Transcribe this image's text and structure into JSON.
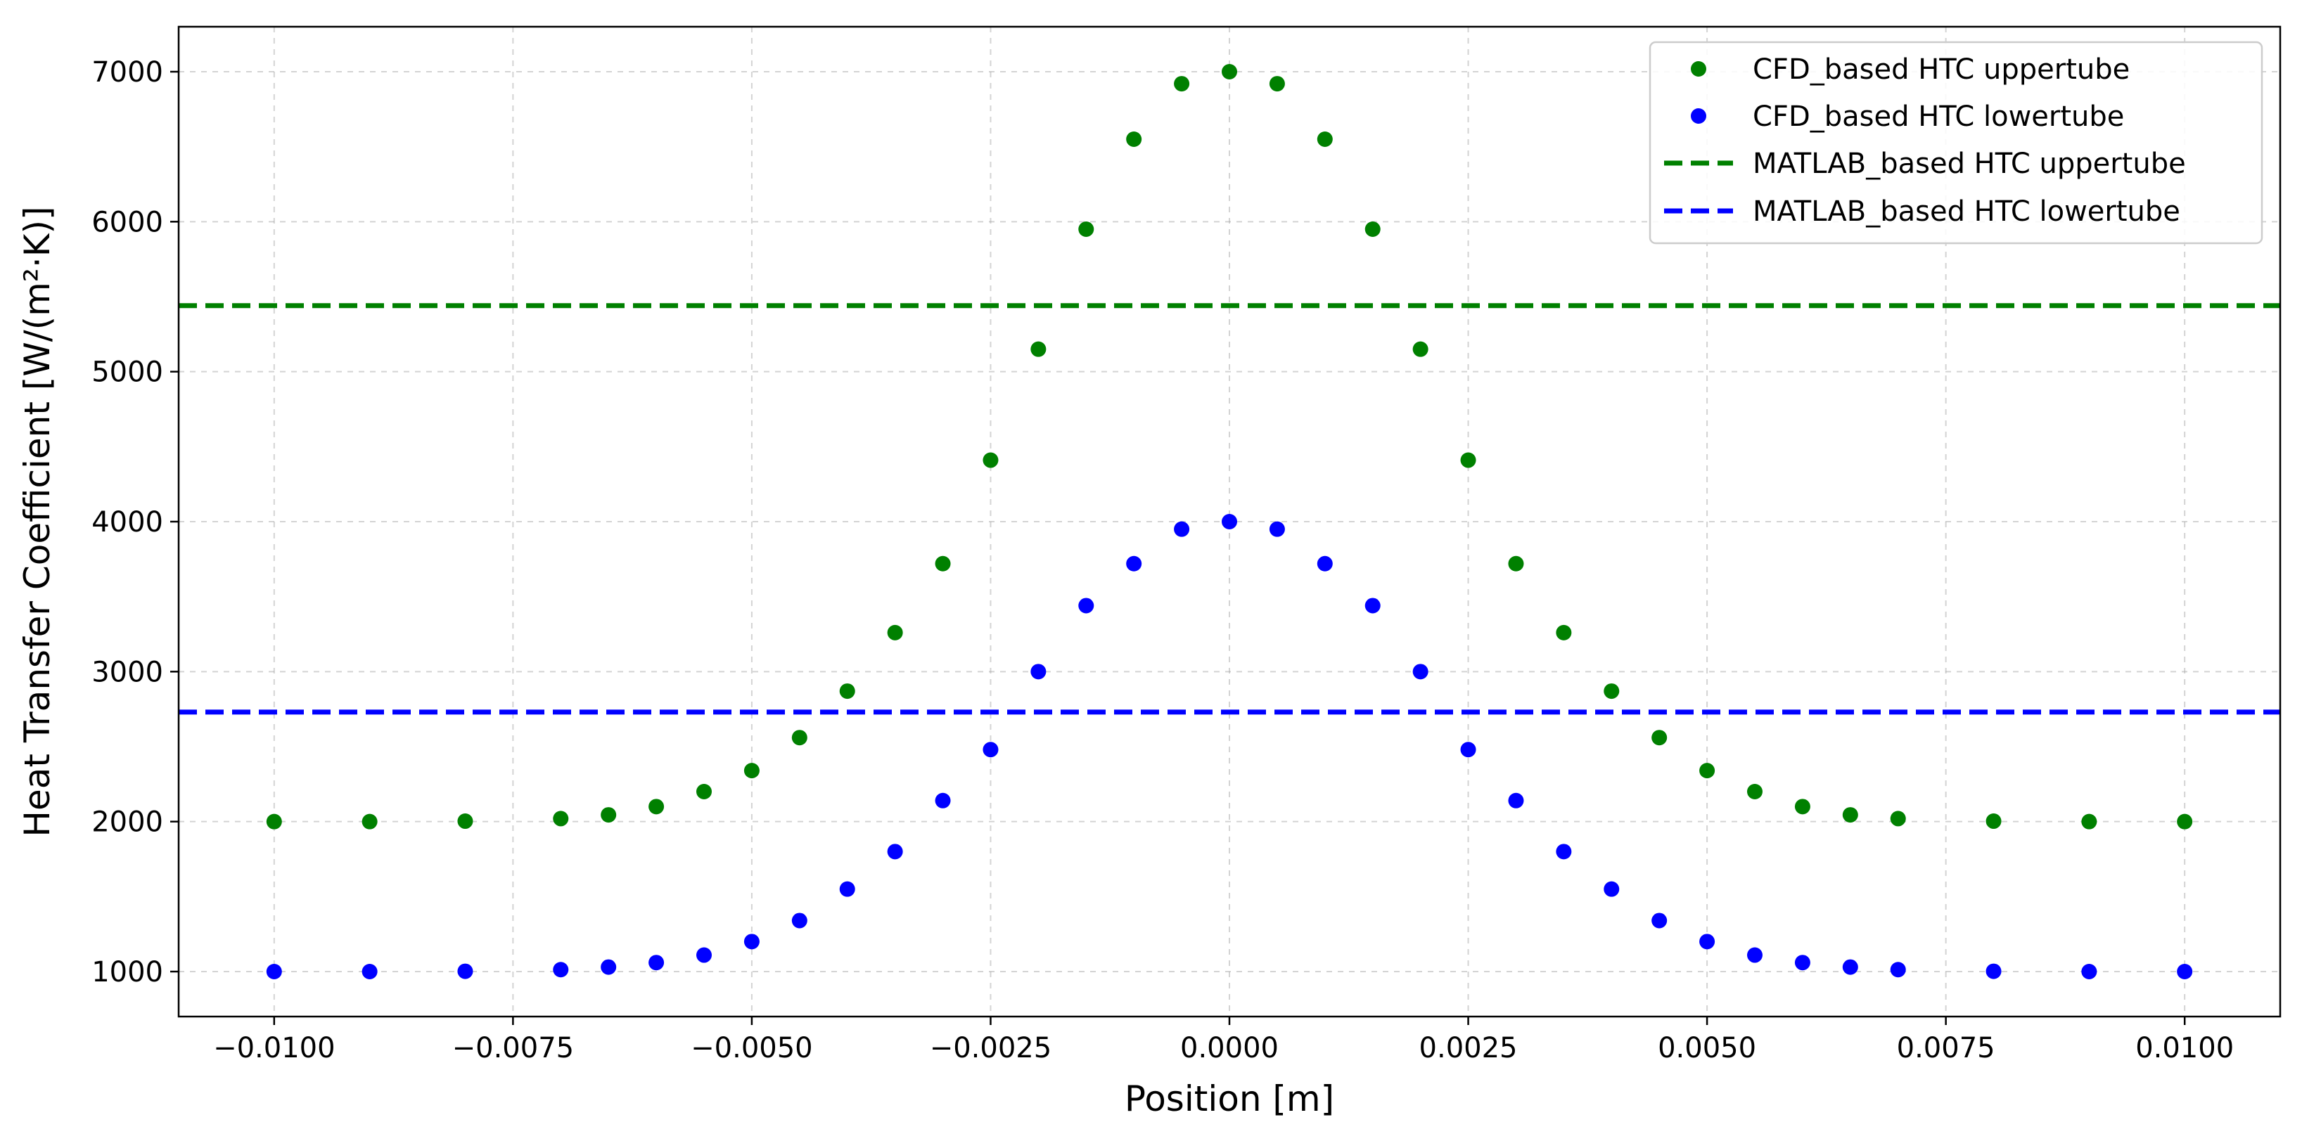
{
  "chart_data": {
    "type": "scatter",
    "title": "",
    "xlabel": "Position [m]",
    "ylabel": "Heat Transfer Coefficient [W/(m²·K)]",
    "xlim": [
      -0.011,
      0.011
    ],
    "ylim": [
      700,
      7300
    ],
    "grid": true,
    "legend_position": "top-right",
    "x_ticks": [
      -0.01,
      -0.0075,
      -0.005,
      -0.0025,
      0.0,
      0.0025,
      0.005,
      0.0075,
      0.01
    ],
    "x_tick_labels": [
      "−0.0100",
      "−0.0075",
      "−0.0050",
      "−0.0025",
      "0.0000",
      "0.0025",
      "0.0050",
      "0.0075",
      "0.0100"
    ],
    "y_ticks": [
      1000,
      2000,
      3000,
      4000,
      5000,
      6000,
      7000
    ],
    "y_tick_labels": [
      "1000",
      "2000",
      "3000",
      "4000",
      "5000",
      "6000",
      "7000"
    ],
    "point_series": [
      {
        "name": "CFD_based HTC uppertube",
        "color": "#008000",
        "x": [
          -0.01,
          -0.009,
          -0.008,
          -0.007,
          -0.0065,
          -0.006,
          -0.0055,
          -0.005,
          -0.0045,
          -0.004,
          -0.0035,
          -0.003,
          -0.0025,
          -0.002,
          -0.0015,
          -0.001,
          -0.0005,
          0.0,
          0.0005,
          0.001,
          0.0015,
          0.002,
          0.0025,
          0.003,
          0.0035,
          0.004,
          0.0045,
          0.005,
          0.0055,
          0.006,
          0.0065,
          0.007,
          0.008,
          0.009,
          0.01
        ],
        "y": [
          2000,
          2000,
          2003,
          2020,
          2045,
          2100,
          2200,
          2340,
          2560,
          2870,
          3260,
          3720,
          4410,
          5150,
          5950,
          6550,
          6920,
          7000,
          6920,
          6550,
          5950,
          5150,
          4410,
          3720,
          3260,
          2870,
          2560,
          2340,
          2200,
          2100,
          2045,
          2020,
          2003,
          2000,
          2000
        ]
      },
      {
        "name": "CFD_based HTC lowertube",
        "color": "#0000ff",
        "x": [
          -0.01,
          -0.009,
          -0.008,
          -0.007,
          -0.0065,
          -0.006,
          -0.0055,
          -0.005,
          -0.0045,
          -0.004,
          -0.0035,
          -0.003,
          -0.0025,
          -0.002,
          -0.0015,
          -0.001,
          -0.0005,
          0.0,
          0.0005,
          0.001,
          0.0015,
          0.002,
          0.0025,
          0.003,
          0.0035,
          0.004,
          0.0045,
          0.005,
          0.0055,
          0.006,
          0.0065,
          0.007,
          0.008,
          0.009,
          0.01
        ],
        "y": [
          1000,
          1000,
          1002,
          1013,
          1030,
          1060,
          1110,
          1200,
          1340,
          1550,
          1800,
          2140,
          2480,
          3000,
          3440,
          3720,
          3950,
          4000,
          3950,
          3720,
          3440,
          3000,
          2480,
          2140,
          1800,
          1550,
          1340,
          1200,
          1110,
          1060,
          1030,
          1013,
          1002,
          1000,
          1000
        ]
      }
    ],
    "line_series": [
      {
        "name": "MATLAB_based HTC uppertube",
        "color": "#008000",
        "style": "dashed",
        "y": 5440
      },
      {
        "name": "MATLAB_based HTC lowertube",
        "color": "#0000ff",
        "style": "dashed",
        "y": 2730
      }
    ],
    "legend": [
      {
        "label": "CFD_based HTC uppertube",
        "kind": "marker",
        "color": "#008000"
      },
      {
        "label": "CFD_based HTC lowertube",
        "kind": "marker",
        "color": "#0000ff"
      },
      {
        "label": "MATLAB_based HTC uppertube",
        "kind": "dashed-line",
        "color": "#008000"
      },
      {
        "label": "MATLAB_based HTC lowertube",
        "kind": "dashed-line",
        "color": "#0000ff"
      }
    ]
  }
}
